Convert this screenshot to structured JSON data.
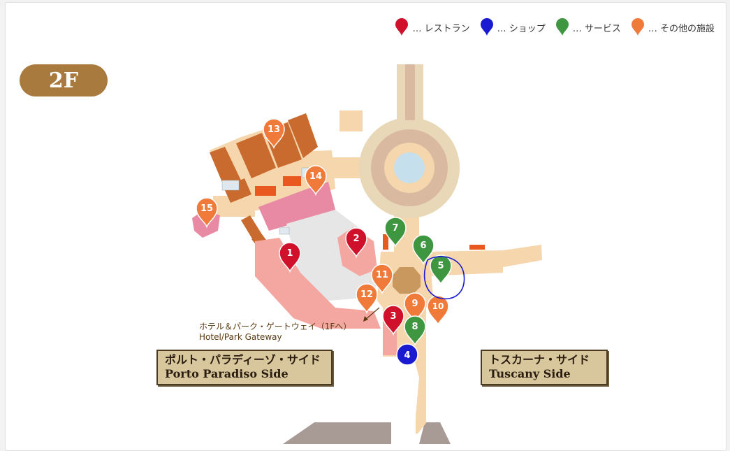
{
  "legend": [
    {
      "label": "… レストラン",
      "color": "#d0112b"
    },
    {
      "label": "… ショップ",
      "color": "#1a1ad0"
    },
    {
      "label": "… サービス",
      "color": "#3e9640"
    },
    {
      "label": "… その他の施設",
      "color": "#f07a3a"
    }
  ],
  "floor": "2F",
  "sides": {
    "porto": {
      "jp": "ポルト・パラディーゾ・サイド",
      "en": "Porto Paradiso Side"
    },
    "tuscany": {
      "jp": "トスカーナ・サイド",
      "en": "Tuscany Side"
    }
  },
  "gateway": {
    "jp": "ホテル＆パーク・ゲートウェイ（1Fへ）",
    "en": "Hotel/Park Gateway"
  },
  "markers": [
    {
      "num": "1",
      "category": "restaurant"
    },
    {
      "num": "2",
      "category": "restaurant"
    },
    {
      "num": "3",
      "category": "restaurant"
    },
    {
      "num": "4",
      "category": "shop"
    },
    {
      "num": "5",
      "category": "service"
    },
    {
      "num": "6",
      "category": "service"
    },
    {
      "num": "7",
      "category": "service"
    },
    {
      "num": "8",
      "category": "service"
    },
    {
      "num": "9",
      "category": "other"
    },
    {
      "num": "10",
      "category": "other"
    },
    {
      "num": "11",
      "category": "other"
    },
    {
      "num": "12",
      "category": "other"
    },
    {
      "num": "13",
      "category": "other"
    },
    {
      "num": "14",
      "category": "other"
    },
    {
      "num": "15",
      "category": "other"
    }
  ],
  "colors": {
    "restaurant": "#d0112b",
    "shop": "#1a1ad0",
    "service": "#3e9640",
    "other": "#f07a3a",
    "corridor": "#f5d6ad",
    "building": "#c96a2e",
    "pink": "#e88aa3",
    "salmon": "#f4a7a0",
    "gray": "#e6e6e6",
    "highlight": "#1a1ad0"
  }
}
